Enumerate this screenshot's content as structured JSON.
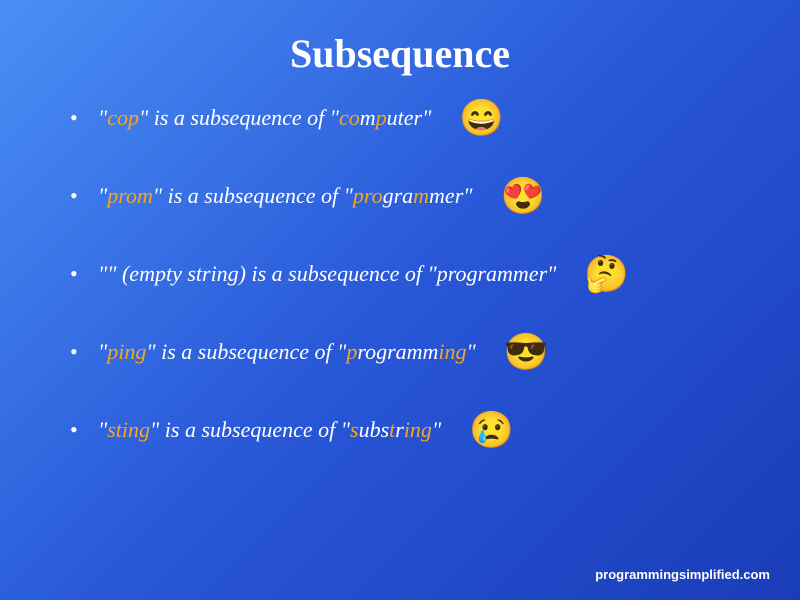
{
  "title": "Subsequence",
  "title_fontsize": 40,
  "item_fontsize": 22,
  "footer_fontsize": 13,
  "background": {
    "gradient_start": "#4a8ff5",
    "gradient_mid": "#2857d8",
    "gradient_end": "#1a3cb8"
  },
  "text_color": "#ffffff",
  "highlight_color": "#f5a623",
  "items": [
    {
      "prefix": "\"",
      "sub": "cop",
      "mid": "\" is a subsequence of \"",
      "word_parts": [
        {
          "t": "co",
          "hl": true
        },
        {
          "t": "m",
          "hl": false
        },
        {
          "t": "p",
          "hl": true
        },
        {
          "t": "uter",
          "hl": false
        }
      ],
      "suffix": "\"",
      "emoji": "😄"
    },
    {
      "prefix": "\"",
      "sub": "prom",
      "mid": "\" is a subsequence of \"",
      "word_parts": [
        {
          "t": "pro",
          "hl": true
        },
        {
          "t": "gra",
          "hl": false
        },
        {
          "t": "m",
          "hl": true
        },
        {
          "t": "mer",
          "hl": false
        }
      ],
      "suffix": "\"",
      "emoji": "😍"
    },
    {
      "prefix": "\"\" (empty string) is a subsequence of \"",
      "sub": "",
      "mid": "",
      "word_parts": [
        {
          "t": "programmer",
          "hl": false
        }
      ],
      "suffix": "\"",
      "emoji": "🤔"
    },
    {
      "prefix": "\"",
      "sub": "ping",
      "mid": "\" is a subsequence of \"",
      "word_parts": [
        {
          "t": "p",
          "hl": true
        },
        {
          "t": "rogramm",
          "hl": false
        },
        {
          "t": "ing",
          "hl": true
        }
      ],
      "suffix": "\"",
      "emoji": "😎"
    },
    {
      "prefix": "\"",
      "sub": "sting",
      "mid": "\" is a subsequence of \"",
      "word_parts": [
        {
          "t": "s",
          "hl": true
        },
        {
          "t": "ubs",
          "hl": false
        },
        {
          "t": "t",
          "hl": true
        },
        {
          "t": "r",
          "hl": false
        },
        {
          "t": "ing",
          "hl": true
        }
      ],
      "suffix": "\"",
      "emoji": "😢"
    }
  ],
  "footer": "programmingsimplified.com"
}
